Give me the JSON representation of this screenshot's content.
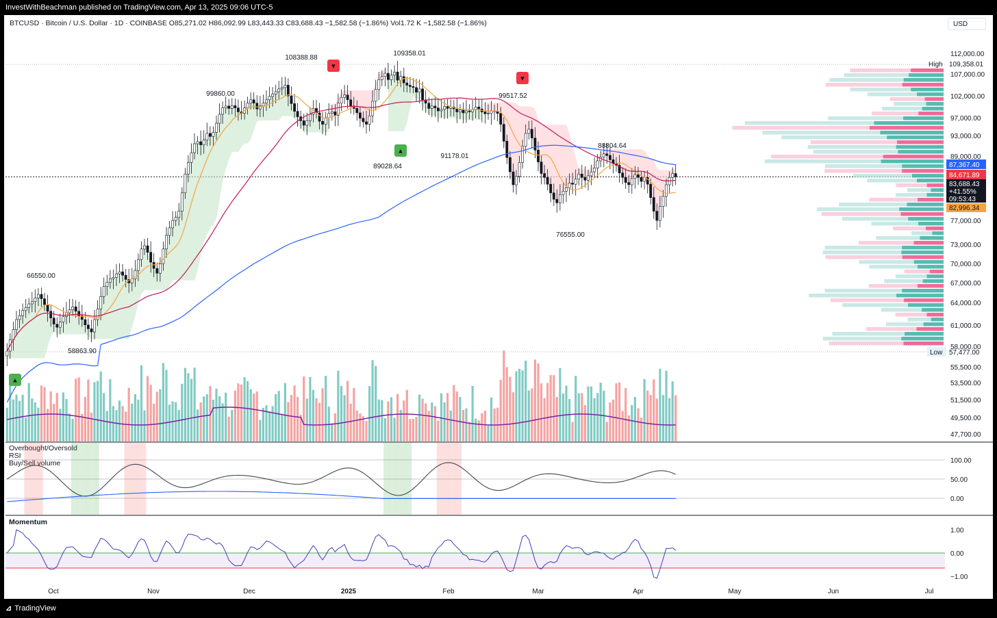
{
  "header": {
    "publisher_line": "InvestWithBeachman published on TradingView.com, Apr 13, 2025 09:06 UTC-5",
    "symbol_line": "BTCUSD · Bitcoin / U.S. Dollar · 1D · COINBASE  O85,271.02  H86,092.99  L83,443.33  C83,688.43  −1,582.58 (−1.86%)   Vol1.72 K   −1,582.58 (−1.86%)",
    "currency_label": "USD"
  },
  "footer": {
    "brand": "TradingView"
  },
  "colors": {
    "up": "#26a69a",
    "down": "#ef5350",
    "ma_fast": "#f7a440",
    "ma_mid": "#c2185b",
    "ma_slow": "#2962ff",
    "volume_ma": "#7b1fa2",
    "momentum": "#3f3fb5"
  },
  "chart_data": [
    {
      "type": "candlestick",
      "name": "BTCUSD 1D",
      "y_axis_ticks": [
        "112,000.00",
        "107,000.00",
        "102,000.00",
        "97,000.00",
        "93,000.00",
        "89,000.00",
        "77,000.00",
        "73,000.00",
        "70,000.00",
        "67,000.00",
        "64,000.00",
        "61,000.00",
        "58,000.00",
        "55,500.00",
        "53,500.00",
        "51,500.00",
        "49,500.00",
        "47,700.00"
      ],
      "x_axis_ticks": [
        "Oct",
        "Nov",
        "Dec",
        "2025",
        "Feb",
        "Mar",
        "Apr",
        "May",
        "Jun",
        "Jul"
      ],
      "price_labels": {
        "high_label": "High",
        "high_value": "109,358.01",
        "low_label": "Low",
        "low_value": "57,477.00",
        "ma_slow": "87,367.40",
        "ma_mid": "84,671.89",
        "last": "83,688.43",
        "change_pct": "+41.55%",
        "countdown": "09:53:43",
        "ma_fast": "82,996.34"
      },
      "annotations": [
        "108388.88",
        "109358.01",
        "99860.00",
        "99517.52",
        "89028.64",
        "91178.01",
        "88804.64",
        "76555.00",
        "66550.00",
        "58863.90"
      ],
      "closes": [
        57800,
        59200,
        60500,
        61800,
        62300,
        63000,
        63400,
        63900,
        64200,
        64700,
        65200,
        64600,
        63800,
        62900,
        62000,
        61200,
        60800,
        61500,
        62200,
        62700,
        63100,
        63500,
        62900,
        62300,
        61800,
        61100,
        60600,
        60200,
        61800,
        63200,
        64900,
        66300,
        66900,
        67400,
        67600,
        68100,
        68400,
        67900,
        67300,
        66800,
        67400,
        68600,
        70200,
        71800,
        72300,
        71300,
        69800,
        68900,
        68200,
        69600,
        71800,
        73900,
        75100,
        76300,
        76800,
        77800,
        80900,
        84200,
        86300,
        88100,
        89800,
        90200,
        89600,
        90500,
        91800,
        91200,
        92000,
        93800,
        95600,
        96900,
        97300,
        96800,
        97400,
        96900,
        96100,
        95800,
        96900,
        97900,
        98600,
        97900,
        96700,
        97300,
        97900,
        98600,
        99300,
        99800,
        100300,
        100900,
        101200,
        101700,
        99400,
        97800,
        96200,
        95100,
        94300,
        93400,
        94300,
        95600,
        96800,
        95900,
        94200,
        93600,
        94900,
        95800,
        96100,
        95400,
        97900,
        99100,
        99600,
        98600,
        97300,
        96800,
        95900,
        94800,
        94100,
        93600,
        95300,
        98300,
        100800,
        102900,
        103600,
        104300,
        102900,
        103900,
        104600,
        102800,
        103600,
        102200,
        101700,
        101400,
        101200,
        100200,
        100900,
        98600,
        97900,
        96800,
        97300,
        96900,
        96300,
        96600,
        97200,
        96800,
        97100,
        96700,
        96100,
        96500,
        95900,
        96300,
        96100,
        96600,
        97100,
        96700,
        96100,
        95700,
        95800,
        96300,
        96200,
        95800,
        93600,
        90300,
        87200,
        84600,
        82300,
        83800,
        86300,
        89300,
        91800,
        92600,
        90900,
        88600,
        86400,
        84300,
        83600,
        82400,
        80900,
        79800,
        79200,
        80600,
        81200,
        81800,
        82600,
        82400,
        83300,
        84200,
        83600,
        83100,
        83900,
        84600,
        85300,
        86600,
        87300,
        87900,
        87600,
        86800,
        86100,
        85800,
        84400,
        83600,
        82700,
        82300,
        83400,
        84100,
        83600,
        82900,
        83600,
        82400,
        80100,
        77800,
        76300,
        78600,
        80300,
        82300,
        83600,
        84300,
        83700
      ],
      "volume_bars_count": 214,
      "rsi_levels": [
        "100.00",
        "50.00",
        "0.00"
      ],
      "momentum_levels": [
        "1.00",
        "0.00",
        "−1.00"
      ],
      "panel_labels": {
        "indicator_1": "Overbought/Oversold",
        "indicator_2": "RSI",
        "indicator_3": "Buy/Sell volume",
        "indicator_4": "Momentum"
      }
    }
  ]
}
